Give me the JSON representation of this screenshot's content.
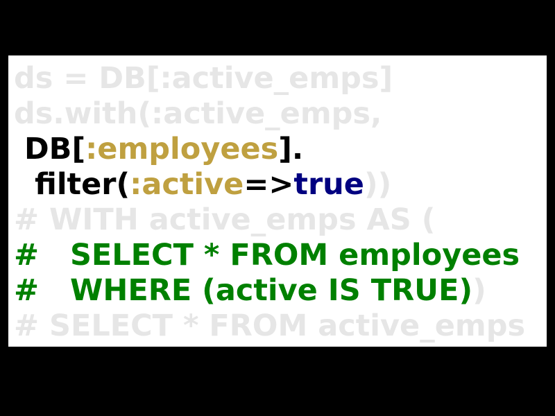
{
  "lines": [
    {
      "segments": [
        {
          "text": "ds = DB[:active_emps]",
          "color": "#e6e6e6"
        }
      ]
    },
    {
      "segments": [
        {
          "text": "ds.with(:active_emps,",
          "color": "#e6e6e6"
        }
      ]
    },
    {
      "segments": [
        {
          "text": " DB[",
          "color": "#000000"
        },
        {
          "text": ":employees",
          "color": "#bfa040"
        },
        {
          "text": "].",
          "color": "#000000"
        }
      ]
    },
    {
      "segments": [
        {
          "text": "  filter(",
          "color": "#000000"
        },
        {
          "text": ":active",
          "color": "#bfa040"
        },
        {
          "text": "=>",
          "color": "#000000"
        },
        {
          "text": "true",
          "color": "#000080"
        },
        {
          "text": "))",
          "color": "#e6e6e6"
        }
      ]
    },
    {
      "segments": [
        {
          "text": "# WITH active_emps AS (",
          "color": "#e6e6e6"
        }
      ]
    },
    {
      "segments": [
        {
          "text": "#   SELECT * FROM employees",
          "color": "#008000"
        }
      ]
    },
    {
      "segments": [
        {
          "text": "#   WHERE (active IS TRUE)",
          "color": "#008000"
        },
        {
          "text": ")",
          "color": "#e6e6e6"
        }
      ]
    },
    {
      "segments": [
        {
          "text": "# SELECT * FROM active_emps",
          "color": "#e6e6e6"
        }
      ]
    }
  ]
}
